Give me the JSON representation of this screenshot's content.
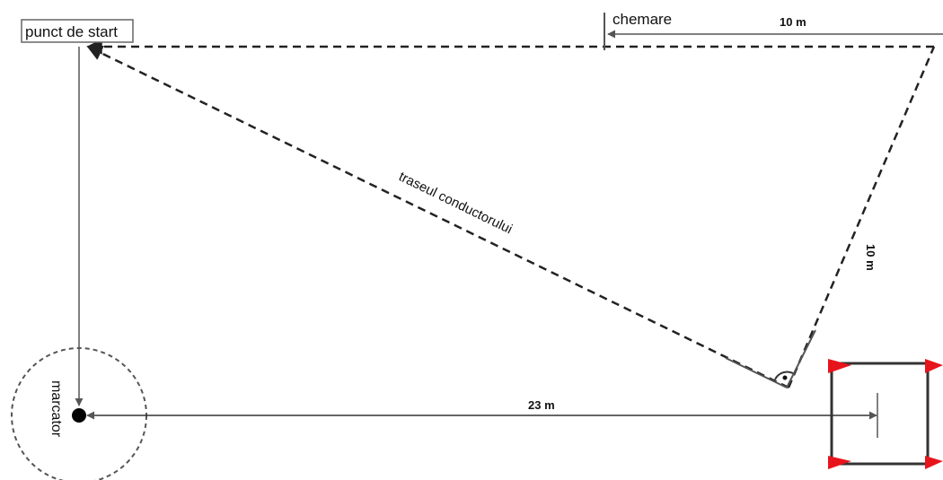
{
  "labels": {
    "start_point": "punct de start",
    "call": "chemare",
    "top_distance": "10 m",
    "handler_path": "traseul conductorului",
    "diagonal_distance": "10 m",
    "marker": "marcator",
    "bottom_distance": "23 m"
  },
  "colors": {
    "line": "#222222",
    "arrow_line": "#666666",
    "flag": "#e8141c",
    "box_border": "#666666",
    "circle": "#555555"
  },
  "icons": {
    "flag": "red-triangle-flag-icon",
    "marker": "black-dot-icon",
    "angle": "right-angle-icon"
  }
}
